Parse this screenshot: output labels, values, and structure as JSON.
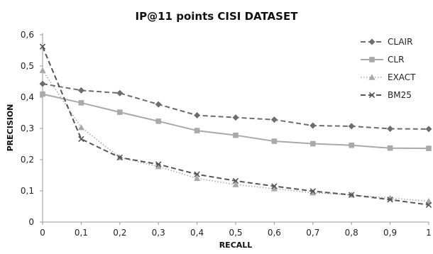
{
  "chart_data": {
    "type": "line",
    "title": "IP@11 points CISI DATASET",
    "xlabel": "RECALL",
    "ylabel": "PRECISION",
    "x": [
      0,
      0.1,
      0.2,
      0.3,
      0.4,
      0.5,
      0.6,
      0.7,
      0.8,
      0.9,
      1
    ],
    "x_tick_labels": [
      "0",
      "0,1",
      "0,2",
      "0,3",
      "0,4",
      "0,5",
      "0,6",
      "0,7",
      "0,8",
      "0,9",
      "1"
    ],
    "ylim": [
      0,
      0.6
    ],
    "y_ticks": [
      0,
      0.1,
      0.2,
      0.3,
      0.4,
      0.5,
      0.6
    ],
    "y_tick_labels": [
      "0",
      "0,1",
      "0,2",
      "0,3",
      "0,4",
      "0,5",
      "0,6"
    ],
    "grid": false,
    "legend_position": "top-right",
    "series": [
      {
        "name": "CLAIR",
        "color": "#6d6d6d",
        "dash": "dashed",
        "marker": "diamond",
        "values": [
          0.443,
          0.422,
          0.413,
          0.377,
          0.342,
          0.335,
          0.328,
          0.309,
          0.307,
          0.299,
          0.298
        ]
      },
      {
        "name": "CLR",
        "color": "#a9a9a9",
        "dash": "solid",
        "marker": "square",
        "values": [
          0.41,
          0.382,
          0.352,
          0.323,
          0.293,
          0.278,
          0.259,
          0.251,
          0.246,
          0.237,
          0.236
        ]
      },
      {
        "name": "EXACT",
        "color": "#a9a9a9",
        "dash": "dotted",
        "marker": "triangle",
        "values": [
          0.486,
          0.303,
          0.207,
          0.178,
          0.14,
          0.12,
          0.107,
          0.094,
          0.087,
          0.077,
          0.067
        ]
      },
      {
        "name": "BM25",
        "color": "#555555",
        "dash": "dashed",
        "marker": "x",
        "values": [
          0.562,
          0.266,
          0.207,
          0.185,
          0.153,
          0.132,
          0.115,
          0.099,
          0.087,
          0.072,
          0.055
        ]
      }
    ]
  }
}
